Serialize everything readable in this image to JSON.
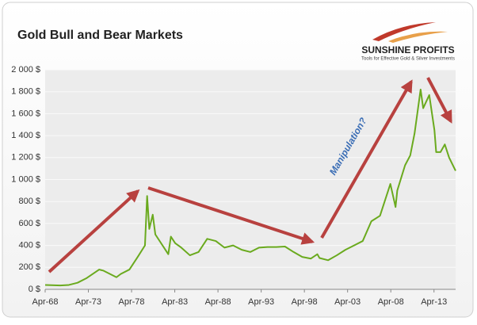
{
  "chart_data": {
    "type": "line",
    "title": "Gold Bull and Bear Markets",
    "logo": {
      "name": "SUNSHINE PROFITS",
      "tagline": "Tools for Effective Gold & Silver Investments"
    },
    "annotation": "Manipulation?",
    "x": [
      1968.25,
      1970,
      1971,
      1972,
      1973,
      1974.5,
      1975,
      1976.5,
      1977,
      1978,
      1979,
      1979.8,
      1980.05,
      1980.3,
      1980.7,
      1981,
      1982.5,
      1982.8,
      1983.3,
      1984,
      1985,
      1986,
      1987,
      1988,
      1989,
      1990,
      1991,
      1992,
      1993,
      1994,
      1995,
      1996,
      1997,
      1998,
      1999,
      1999.75,
      2000,
      2001,
      2002,
      2003,
      2004,
      2005,
      2006,
      2007,
      2008.2,
      2008.8,
      2009,
      2009.9,
      2010.5,
      2011,
      2011.7,
      2012,
      2012.7,
      2013.3,
      2013.5,
      2014,
      2014.5,
      2015,
      2015.75
    ],
    "series": [
      {
        "name": "Gold",
        "color": "#6aaa1e",
        "values": [
          40,
          35,
          40,
          60,
          100,
          180,
          170,
          110,
          140,
          180,
          300,
          400,
          850,
          550,
          680,
          500,
          320,
          480,
          420,
          380,
          310,
          340,
          460,
          440,
          380,
          400,
          360,
          340,
          380,
          385,
          385,
          390,
          340,
          295,
          280,
          320,
          285,
          265,
          310,
          360,
          400,
          440,
          620,
          670,
          960,
          750,
          900,
          1130,
          1220,
          1420,
          1820,
          1650,
          1770,
          1450,
          1250,
          1250,
          1320,
          1200,
          1080
        ]
      }
    ],
    "xlim": [
      1968.25,
      2015.75
    ],
    "xticks": [
      {
        "value": 1968.25,
        "label": "Apr-68"
      },
      {
        "value": 1973.25,
        "label": "Apr-73"
      },
      {
        "value": 1978.25,
        "label": "Apr-78"
      },
      {
        "value": 1983.25,
        "label": "Apr-83"
      },
      {
        "value": 1988.25,
        "label": "Apr-88"
      },
      {
        "value": 1993.25,
        "label": "Apr-93"
      },
      {
        "value": 1998.25,
        "label": "Apr-98"
      },
      {
        "value": 2003.25,
        "label": "Apr-03"
      },
      {
        "value": 2008.25,
        "label": "Apr-08"
      },
      {
        "value": 2013.25,
        "label": "Apr-13"
      }
    ],
    "ylim": [
      0,
      2000
    ],
    "yticks": [
      {
        "value": 0,
        "label": "0 $"
      },
      {
        "value": 200,
        "label": "200 $"
      },
      {
        "value": 400,
        "label": "400 $"
      },
      {
        "value": 600,
        "label": "600 $"
      },
      {
        "value": 800,
        "label": "800 $"
      },
      {
        "value": 1000,
        "label": "1 000 $"
      },
      {
        "value": 1200,
        "label": "1 200 $"
      },
      {
        "value": 1400,
        "label": "1 400 $"
      },
      {
        "value": 1600,
        "label": "1 600 $"
      },
      {
        "value": 1800,
        "label": "1 800 $"
      },
      {
        "value": 2000,
        "label": "2 000 $"
      }
    ],
    "grid": true
  }
}
